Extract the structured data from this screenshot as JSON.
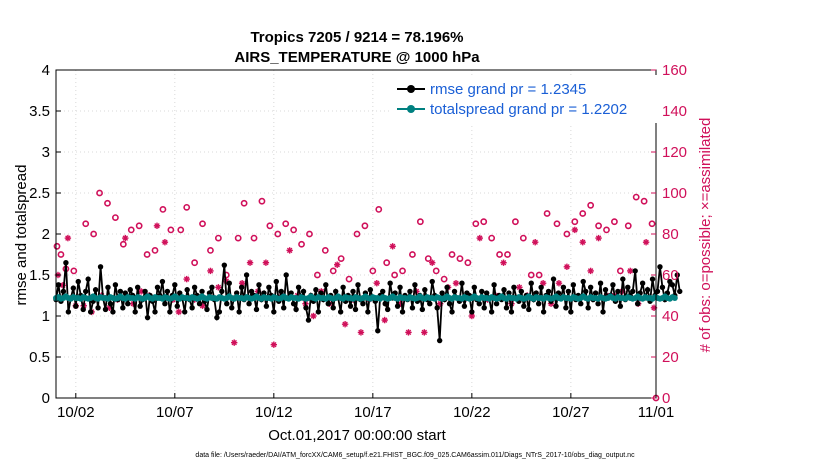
{
  "chart_data": {
    "type": "line",
    "title_line1": "Tropics 7205 / 9214 = 78.196%",
    "title_line2": "AIRS_TEMPERATURE @ 1000 hPa",
    "xlabel": "Oct.01,2017 00:00:00 start",
    "ylabel_left": "rmse and totalspread",
    "ylabel_right": "# of obs: o=possible; ×=assimilated",
    "xlim": [
      0,
      30.3
    ],
    "ylim_left": [
      0,
      4
    ],
    "ylim_right": [
      0,
      160
    ],
    "x_ticks": [
      {
        "x": 1,
        "label": "10/02"
      },
      {
        "x": 6,
        "label": "10/07"
      },
      {
        "x": 11,
        "label": "10/12"
      },
      {
        "x": 16,
        "label": "10/17"
      },
      {
        "x": 21,
        "label": "10/22"
      },
      {
        "x": 26,
        "label": "10/27"
      },
      {
        "x": 31,
        "label": "11/01"
      }
    ],
    "y_ticks_left": [
      "0",
      "0.5",
      "1",
      "1.5",
      "2",
      "2.5",
      "3",
      "3.5",
      "4"
    ],
    "y_ticks_right": [
      "0",
      "20",
      "40",
      "60",
      "80",
      "100",
      "120",
      "140",
      "160"
    ],
    "x_step_days": 0.125,
    "series": [
      {
        "name": "rmse grand pr = 1.2345",
        "color": "#000000",
        "axis": "left",
        "values": [
          1.2,
          1.38,
          1.18,
          1.3,
          1.65,
          1.05,
          1.22,
          1.34,
          1.12,
          1.42,
          1.25,
          1.08,
          1.3,
          1.45,
          1.05,
          1.18,
          1.32,
          1.1,
          1.6,
          1.22,
          1.08,
          1.35,
          1.15,
          1.05,
          1.38,
          1.2,
          1.3,
          1.1,
          1.28,
          1.15,
          1.32,
          1.25,
          1.05,
          1.35,
          1.12,
          1.2,
          1.3,
          0.98,
          1.25,
          1.18,
          1.05,
          1.35,
          1.25,
          1.42,
          1.15,
          1.3,
          1.05,
          1.25,
          1.38,
          1.12,
          1.28,
          1.22,
          1.05,
          1.32,
          1.2,
          1.1,
          1.35,
          1.25,
          1.15,
          1.3,
          1.18,
          1.08,
          1.28,
          1.35,
          1.2,
          0.98,
          1.05,
          1.3,
          1.62,
          1.15,
          1.4,
          1.1,
          1.22,
          1.28,
          1.05,
          1.35,
          1.2,
          1.5,
          1.15,
          1.3,
          1.25,
          1.08,
          1.38,
          1.2,
          1.28,
          1.12,
          1.35,
          1.25,
          1.05,
          1.42,
          1.18,
          1.3,
          1.1,
          1.5,
          1.22,
          1.28,
          1.15,
          1.08,
          1.35,
          1.22,
          1.3,
          1.1,
          0.95,
          1.25,
          1.18,
          1.32,
          1.05,
          1.28,
          1.2,
          1.38,
          1.15,
          1.25,
          1.1,
          1.3,
          1.22,
          1.05,
          1.35,
          1.18,
          1.25,
          1.12,
          1.3,
          1.08,
          1.38,
          1.2,
          1.15,
          1.28,
          1.05,
          1.32,
          1.22,
          1.18,
          0.82,
          1.25,
          1.3,
          1.15,
          1.08,
          1.4,
          1.22,
          1.28,
          1.12,
          1.35,
          1.05,
          1.25,
          1.2,
          1.3,
          1.1,
          1.38,
          1.18,
          1.25,
          1.08,
          1.32,
          1.2,
          1.15,
          1.42,
          1.25,
          1.1,
          0.7,
          1.28,
          1.2,
          1.35,
          1.15,
          1.05,
          1.3,
          1.22,
          1.18,
          1.4,
          1.12,
          1.28,
          1.25,
          1.05,
          1.35,
          1.2,
          1.15,
          1.3,
          1.1,
          1.28,
          1.22,
          1.05,
          1.38,
          1.15,
          1.25,
          1.2,
          1.32,
          1.1,
          1.28,
          1.05,
          1.35,
          1.22,
          1.18,
          1.3,
          1.12,
          1.25,
          1.08,
          1.4,
          1.2,
          1.28,
          1.15,
          1.35,
          1.05,
          1.25,
          1.3,
          1.18,
          1.45,
          1.12,
          1.28,
          1.22,
          1.35,
          1.1,
          1.3,
          1.05,
          1.38,
          1.2,
          1.25,
          1.15,
          1.42,
          1.3,
          1.1,
          1.35,
          1.2,
          1.28,
          1.15,
          1.4,
          1.05,
          1.32,
          1.22,
          1.25,
          1.38,
          1.18,
          1.3,
          1.12,
          1.45,
          1.2,
          1.35,
          1.25,
          1.3,
          1.55,
          1.15,
          1.28,
          1.4,
          1.22,
          1.32,
          1.18,
          1.45,
          1.25,
          1.3,
          1.6,
          1.35,
          1.2,
          1.28,
          1.42,
          1.38,
          1.25,
          1.5,
          1.3
        ],
        "notes": "approximate reading; line values cluster 1.0–1.5 with spikes"
      },
      {
        "name": "totalspread grand pr = 1.2202",
        "color": "#008080",
        "axis": "left",
        "values": [
          1.22,
          1.23,
          1.21,
          1.22,
          1.24,
          1.22,
          1.21,
          1.23,
          1.22,
          1.22,
          1.21,
          1.23,
          1.22,
          1.21,
          1.22,
          1.24,
          1.22,
          1.21,
          1.23,
          1.22,
          1.22,
          1.21,
          1.23,
          1.22,
          1.21,
          1.22,
          1.24,
          1.22,
          1.21,
          1.23,
          1.22,
          1.22,
          1.21,
          1.23,
          1.22,
          1.21,
          1.22,
          1.24,
          1.22,
          1.21,
          1.23,
          1.22,
          1.22,
          1.21,
          1.23,
          1.22,
          1.21,
          1.22,
          1.24,
          1.22,
          1.21,
          1.23,
          1.22,
          1.22,
          1.21,
          1.23,
          1.22,
          1.21,
          1.22,
          1.24,
          1.22,
          1.21,
          1.23,
          1.22,
          1.22,
          1.21,
          1.23,
          1.22,
          1.21,
          1.22,
          1.24,
          1.22,
          1.21,
          1.23,
          1.22,
          1.22,
          1.21,
          1.23,
          1.22,
          1.21,
          1.22,
          1.24,
          1.22,
          1.21,
          1.23,
          1.22,
          1.22,
          1.21,
          1.23,
          1.22,
          1.21,
          1.22,
          1.24,
          1.22,
          1.21,
          1.23,
          1.22,
          1.22,
          1.21,
          1.23,
          1.22,
          1.21,
          1.22,
          1.24,
          1.22,
          1.21,
          1.23,
          1.22,
          1.22,
          1.21,
          1.23,
          1.22,
          1.21,
          1.22,
          1.24,
          1.22,
          1.21,
          1.23,
          1.22,
          1.22,
          1.21,
          1.23,
          1.22,
          1.21,
          1.22,
          1.24,
          1.22,
          1.21,
          1.23,
          1.22,
          1.22,
          1.21,
          1.23,
          1.22,
          1.21,
          1.22,
          1.24,
          1.22,
          1.21,
          1.23,
          1.22,
          1.22,
          1.21,
          1.23,
          1.22,
          1.21,
          1.22,
          1.24,
          1.22,
          1.21,
          1.23,
          1.22,
          1.22,
          1.21,
          1.23,
          1.22,
          1.21,
          1.22,
          1.24,
          1.22,
          1.21,
          1.23,
          1.22,
          1.22,
          1.21,
          1.23,
          1.22,
          1.21,
          1.22,
          1.24,
          1.22,
          1.21,
          1.23,
          1.22,
          1.22,
          1.21,
          1.23,
          1.22,
          1.21,
          1.22,
          1.24,
          1.22,
          1.21,
          1.23,
          1.22,
          1.22,
          1.21,
          1.23,
          1.22,
          1.21,
          1.22,
          1.24,
          1.22,
          1.21,
          1.23,
          1.22,
          1.22,
          1.21,
          1.23,
          1.22,
          1.21,
          1.22,
          1.24,
          1.22,
          1.21,
          1.23,
          1.22,
          1.22,
          1.21,
          1.23,
          1.22,
          1.21,
          1.22,
          1.24,
          1.22,
          1.21,
          1.23,
          1.22,
          1.22,
          1.21,
          1.23,
          1.22,
          1.21,
          1.22,
          1.24,
          1.22,
          1.21,
          1.23,
          1.22,
          1.22,
          1.21,
          1.23,
          1.22,
          1.21,
          1.22,
          1.24,
          1.22,
          1.21,
          1.23,
          1.22,
          1.22,
          1.21,
          1.23,
          1.22,
          1.21,
          1.22,
          1.24,
          1.22,
          1.21,
          1.23,
          1.22
        ]
      }
    ],
    "obs_possible": {
      "name": "possible (o)",
      "color": "#d0105a",
      "axis": "right",
      "points": [
        [
          0.05,
          74
        ],
        [
          0.25,
          70
        ],
        [
          0.5,
          63
        ],
        [
          0.9,
          62
        ],
        [
          1.5,
          85
        ],
        [
          1.9,
          80
        ],
        [
          2.2,
          100
        ],
        [
          2.6,
          95
        ],
        [
          3.0,
          88
        ],
        [
          3.4,
          75
        ],
        [
          3.8,
          82
        ],
        [
          4.2,
          84
        ],
        [
          4.6,
          70
        ],
        [
          5.0,
          72
        ],
        [
          5.4,
          92
        ],
        [
          5.8,
          82
        ],
        [
          6.3,
          82
        ],
        [
          6.6,
          93
        ],
        [
          7.0,
          66
        ],
        [
          7.4,
          85
        ],
        [
          7.8,
          72
        ],
        [
          8.2,
          78
        ],
        [
          8.6,
          60
        ],
        [
          9.2,
          78
        ],
        [
          9.5,
          95
        ],
        [
          10.0,
          78
        ],
        [
          10.4,
          96
        ],
        [
          10.8,
          84
        ],
        [
          11.2,
          80
        ],
        [
          11.6,
          85
        ],
        [
          12.0,
          82
        ],
        [
          12.4,
          75
        ],
        [
          12.8,
          80
        ],
        [
          13.2,
          60
        ],
        [
          13.6,
          72
        ],
        [
          14.0,
          62
        ],
        [
          14.4,
          68
        ],
        [
          14.8,
          58
        ],
        [
          15.2,
          80
        ],
        [
          15.6,
          84
        ],
        [
          16.0,
          62
        ],
        [
          16.3,
          92
        ],
        [
          16.7,
          66
        ],
        [
          17.1,
          60
        ],
        [
          17.5,
          62
        ],
        [
          18.0,
          70
        ],
        [
          18.4,
          86
        ],
        [
          18.8,
          68
        ],
        [
          19.2,
          62
        ],
        [
          19.6,
          58
        ],
        [
          20.0,
          70
        ],
        [
          20.4,
          68
        ],
        [
          20.8,
          66
        ],
        [
          21.2,
          85
        ],
        [
          21.6,
          86
        ],
        [
          22.0,
          78
        ],
        [
          22.4,
          70
        ],
        [
          22.8,
          70
        ],
        [
          23.2,
          86
        ],
        [
          23.6,
          78
        ],
        [
          24.0,
          60
        ],
        [
          24.4,
          60
        ],
        [
          24.8,
          90
        ],
        [
          25.3,
          85
        ],
        [
          25.8,
          80
        ],
        [
          26.2,
          86
        ],
        [
          26.6,
          90
        ],
        [
          27.0,
          94
        ],
        [
          27.4,
          84
        ],
        [
          27.8,
          82
        ],
        [
          28.2,
          86
        ],
        [
          28.5,
          62
        ],
        [
          28.9,
          84
        ],
        [
          29.3,
          98
        ],
        [
          29.7,
          96
        ],
        [
          30.1,
          85
        ],
        [
          30.3,
          0
        ]
      ]
    },
    "obs_assimilated": {
      "name": "assimilated (×)",
      "color": "#d0105a",
      "axis": "right",
      "points": [
        [
          0.1,
          60
        ],
        [
          0.35,
          55
        ],
        [
          0.6,
          78
        ],
        [
          1.0,
          45
        ],
        [
          1.4,
          45
        ],
        [
          1.8,
          42
        ],
        [
          2.3,
          50
        ],
        [
          2.7,
          44
        ],
        [
          3.1,
          48
        ],
        [
          3.5,
          78
        ],
        [
          3.9,
          46
        ],
        [
          4.3,
          52
        ],
        [
          4.7,
          50
        ],
        [
          5.1,
          84
        ],
        [
          5.5,
          76
        ],
        [
          5.9,
          48
        ],
        [
          6.2,
          42
        ],
        [
          6.6,
          58
        ],
        [
          7.0,
          48
        ],
        [
          7.4,
          45
        ],
        [
          7.8,
          62
        ],
        [
          8.2,
          54
        ],
        [
          8.6,
          57
        ],
        [
          9.0,
          27
        ],
        [
          9.4,
          56
        ],
        [
          9.8,
          66
        ],
        [
          10.2,
          52
        ],
        [
          10.6,
          66
        ],
        [
          11.0,
          26
        ],
        [
          11.4,
          50
        ],
        [
          11.8,
          72
        ],
        [
          12.2,
          50
        ],
        [
          12.6,
          46
        ],
        [
          13.0,
          40
        ],
        [
          13.4,
          52
        ],
        [
          13.8,
          46
        ],
        [
          14.2,
          65
        ],
        [
          14.6,
          36
        ],
        [
          15.0,
          48
        ],
        [
          15.4,
          32
        ],
        [
          15.8,
          48
        ],
        [
          16.2,
          56
        ],
        [
          16.6,
          38
        ],
        [
          17.0,
          74
        ],
        [
          17.4,
          46
        ],
        [
          17.8,
          32
        ],
        [
          18.2,
          52
        ],
        [
          18.6,
          32
        ],
        [
          19.0,
          66
        ],
        [
          19.4,
          46
        ],
        [
          19.8,
          54
        ],
        [
          20.2,
          56
        ],
        [
          20.6,
          48
        ],
        [
          21.0,
          40
        ],
        [
          21.4,
          78
        ],
        [
          21.8,
          48
        ],
        [
          22.2,
          50
        ],
        [
          22.6,
          66
        ],
        [
          23.0,
          46
        ],
        [
          23.4,
          54
        ],
        [
          23.8,
          50
        ],
        [
          24.2,
          76
        ],
        [
          24.6,
          56
        ],
        [
          25.0,
          46
        ],
        [
          25.4,
          56
        ],
        [
          25.8,
          64
        ],
        [
          26.2,
          82
        ],
        [
          26.6,
          76
        ],
        [
          27.0,
          62
        ],
        [
          27.4,
          78
        ],
        [
          27.8,
          50
        ],
        [
          28.2,
          50
        ],
        [
          28.6,
          52
        ],
        [
          29.0,
          62
        ],
        [
          29.4,
          46
        ],
        [
          29.8,
          76
        ],
        [
          30.2,
          44
        ]
      ]
    },
    "legend_position": "top-right",
    "grid": "dotted"
  },
  "footnote": "data file: /Users/raeder/DAI/ATM_forcXX/CAM6_setup/f.e21.FHIST_BGC.f09_025.CAM6assim.011/Diags_NTrS_2017-10/obs_diag_output.nc"
}
